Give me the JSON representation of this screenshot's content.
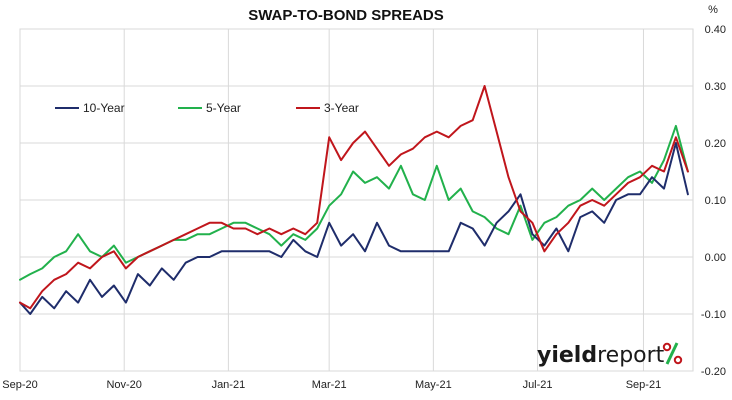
{
  "chart_data": {
    "type": "line",
    "title": "SWAP-TO-BOND SPREADS",
    "y_unit": "%",
    "ylim": [
      -0.2,
      0.4
    ],
    "y_ticks": [
      "0.40",
      "0.30",
      "0.20",
      "0.10",
      "0.00",
      "-0.10",
      "-0.20"
    ],
    "x_range": [
      "2020-09-01",
      "2021-09-30"
    ],
    "x_ticks": [
      {
        "label": "Sep-20",
        "date": "2020-09-01"
      },
      {
        "label": "Nov-20",
        "date": "2020-11-01"
      },
      {
        "label": "Jan-21",
        "date": "2021-01-01"
      },
      {
        "label": "Mar-21",
        "date": "2021-03-01"
      },
      {
        "label": "May-21",
        "date": "2021-05-01"
      },
      {
        "label": "Jul-21",
        "date": "2021-07-01"
      },
      {
        "label": "Sep-21",
        "date": "2021-09-01"
      }
    ],
    "grid": true,
    "legend_position": "top-left",
    "series": [
      {
        "name": "10-Year",
        "color": "#1f2d6b",
        "points": [
          [
            "2020-09-01",
            -0.08
          ],
          [
            "2020-09-07",
            -0.1
          ],
          [
            "2020-09-14",
            -0.07
          ],
          [
            "2020-09-21",
            -0.09
          ],
          [
            "2020-09-28",
            -0.06
          ],
          [
            "2020-10-05",
            -0.08
          ],
          [
            "2020-10-12",
            -0.04
          ],
          [
            "2020-10-19",
            -0.07
          ],
          [
            "2020-10-26",
            -0.05
          ],
          [
            "2020-11-02",
            -0.08
          ],
          [
            "2020-11-09",
            -0.03
          ],
          [
            "2020-11-16",
            -0.05
          ],
          [
            "2020-11-23",
            -0.02
          ],
          [
            "2020-11-30",
            -0.04
          ],
          [
            "2020-12-07",
            -0.01
          ],
          [
            "2020-12-14",
            0.0
          ],
          [
            "2020-12-21",
            0.0
          ],
          [
            "2020-12-28",
            0.01
          ],
          [
            "2021-01-04",
            0.01
          ],
          [
            "2021-01-11",
            0.01
          ],
          [
            "2021-01-18",
            0.01
          ],
          [
            "2021-01-25",
            0.01
          ],
          [
            "2021-02-01",
            0.0
          ],
          [
            "2021-02-08",
            0.03
          ],
          [
            "2021-02-15",
            0.01
          ],
          [
            "2021-02-22",
            0.0
          ],
          [
            "2021-03-01",
            0.06
          ],
          [
            "2021-03-08",
            0.02
          ],
          [
            "2021-03-15",
            0.04
          ],
          [
            "2021-03-22",
            0.01
          ],
          [
            "2021-03-29",
            0.06
          ],
          [
            "2021-04-05",
            0.02
          ],
          [
            "2021-04-12",
            0.01
          ],
          [
            "2021-04-19",
            0.01
          ],
          [
            "2021-04-26",
            0.01
          ],
          [
            "2021-05-03",
            0.01
          ],
          [
            "2021-05-10",
            0.01
          ],
          [
            "2021-05-17",
            0.06
          ],
          [
            "2021-05-24",
            0.05
          ],
          [
            "2021-05-31",
            0.02
          ],
          [
            "2021-06-07",
            0.06
          ],
          [
            "2021-06-14",
            0.08
          ],
          [
            "2021-06-21",
            0.11
          ],
          [
            "2021-06-28",
            0.04
          ],
          [
            "2021-07-05",
            0.02
          ],
          [
            "2021-07-12",
            0.05
          ],
          [
            "2021-07-19",
            0.01
          ],
          [
            "2021-07-26",
            0.07
          ],
          [
            "2021-08-02",
            0.08
          ],
          [
            "2021-08-09",
            0.06
          ],
          [
            "2021-08-16",
            0.1
          ],
          [
            "2021-08-23",
            0.11
          ],
          [
            "2021-08-30",
            0.11
          ],
          [
            "2021-09-06",
            0.14
          ],
          [
            "2021-09-13",
            0.12
          ],
          [
            "2021-09-20",
            0.2
          ],
          [
            "2021-09-27",
            0.11
          ]
        ]
      },
      {
        "name": "5-Year",
        "color": "#22b14c",
        "points": [
          [
            "2020-09-01",
            -0.04
          ],
          [
            "2020-09-07",
            -0.03
          ],
          [
            "2020-09-14",
            -0.02
          ],
          [
            "2020-09-21",
            0.0
          ],
          [
            "2020-09-28",
            0.01
          ],
          [
            "2020-10-05",
            0.04
          ],
          [
            "2020-10-12",
            0.01
          ],
          [
            "2020-10-19",
            0.0
          ],
          [
            "2020-10-26",
            0.02
          ],
          [
            "2020-11-02",
            -0.01
          ],
          [
            "2020-11-09",
            0.0
          ],
          [
            "2020-11-16",
            0.01
          ],
          [
            "2020-11-23",
            0.02
          ],
          [
            "2020-11-30",
            0.03
          ],
          [
            "2020-12-07",
            0.03
          ],
          [
            "2020-12-14",
            0.04
          ],
          [
            "2020-12-21",
            0.04
          ],
          [
            "2020-12-28",
            0.05
          ],
          [
            "2021-01-04",
            0.06
          ],
          [
            "2021-01-11",
            0.06
          ],
          [
            "2021-01-18",
            0.05
          ],
          [
            "2021-01-25",
            0.04
          ],
          [
            "2021-02-01",
            0.02
          ],
          [
            "2021-02-08",
            0.04
          ],
          [
            "2021-02-15",
            0.03
          ],
          [
            "2021-02-22",
            0.05
          ],
          [
            "2021-03-01",
            0.09
          ],
          [
            "2021-03-08",
            0.11
          ],
          [
            "2021-03-15",
            0.15
          ],
          [
            "2021-03-22",
            0.13
          ],
          [
            "2021-03-29",
            0.14
          ],
          [
            "2021-04-05",
            0.12
          ],
          [
            "2021-04-12",
            0.16
          ],
          [
            "2021-04-19",
            0.11
          ],
          [
            "2021-04-26",
            0.1
          ],
          [
            "2021-05-03",
            0.16
          ],
          [
            "2021-05-10",
            0.1
          ],
          [
            "2021-05-17",
            0.12
          ],
          [
            "2021-05-24",
            0.08
          ],
          [
            "2021-05-31",
            0.07
          ],
          [
            "2021-06-07",
            0.05
          ],
          [
            "2021-06-14",
            0.04
          ],
          [
            "2021-06-21",
            0.09
          ],
          [
            "2021-06-28",
            0.03
          ],
          [
            "2021-07-05",
            0.06
          ],
          [
            "2021-07-12",
            0.07
          ],
          [
            "2021-07-19",
            0.09
          ],
          [
            "2021-07-26",
            0.1
          ],
          [
            "2021-08-02",
            0.12
          ],
          [
            "2021-08-09",
            0.1
          ],
          [
            "2021-08-16",
            0.12
          ],
          [
            "2021-08-23",
            0.14
          ],
          [
            "2021-08-30",
            0.15
          ],
          [
            "2021-09-06",
            0.13
          ],
          [
            "2021-09-13",
            0.17
          ],
          [
            "2021-09-20",
            0.23
          ],
          [
            "2021-09-27",
            0.15
          ]
        ]
      },
      {
        "name": "3-Year",
        "color": "#c0161c",
        "points": [
          [
            "2020-09-01",
            -0.08
          ],
          [
            "2020-09-07",
            -0.09
          ],
          [
            "2020-09-14",
            -0.06
          ],
          [
            "2020-09-21",
            -0.04
          ],
          [
            "2020-09-28",
            -0.03
          ],
          [
            "2020-10-05",
            -0.01
          ],
          [
            "2020-10-12",
            -0.02
          ],
          [
            "2020-10-19",
            0.0
          ],
          [
            "2020-10-26",
            0.01
          ],
          [
            "2020-11-02",
            -0.02
          ],
          [
            "2020-11-09",
            0.0
          ],
          [
            "2020-11-16",
            0.01
          ],
          [
            "2020-11-23",
            0.02
          ],
          [
            "2020-11-30",
            0.03
          ],
          [
            "2020-12-07",
            0.04
          ],
          [
            "2020-12-14",
            0.05
          ],
          [
            "2020-12-21",
            0.06
          ],
          [
            "2020-12-28",
            0.06
          ],
          [
            "2021-01-04",
            0.05
          ],
          [
            "2021-01-11",
            0.05
          ],
          [
            "2021-01-18",
            0.04
          ],
          [
            "2021-01-25",
            0.05
          ],
          [
            "2021-02-01",
            0.04
          ],
          [
            "2021-02-08",
            0.05
          ],
          [
            "2021-02-15",
            0.04
          ],
          [
            "2021-02-22",
            0.06
          ],
          [
            "2021-03-01",
            0.21
          ],
          [
            "2021-03-08",
            0.17
          ],
          [
            "2021-03-15",
            0.2
          ],
          [
            "2021-03-22",
            0.22
          ],
          [
            "2021-03-29",
            0.19
          ],
          [
            "2021-04-05",
            0.16
          ],
          [
            "2021-04-12",
            0.18
          ],
          [
            "2021-04-19",
            0.19
          ],
          [
            "2021-04-26",
            0.21
          ],
          [
            "2021-05-03",
            0.22
          ],
          [
            "2021-05-10",
            0.21
          ],
          [
            "2021-05-17",
            0.23
          ],
          [
            "2021-05-24",
            0.24
          ],
          [
            "2021-05-31",
            0.3
          ],
          [
            "2021-06-07",
            0.22
          ],
          [
            "2021-06-14",
            0.14
          ],
          [
            "2021-06-21",
            0.08
          ],
          [
            "2021-06-28",
            0.06
          ],
          [
            "2021-07-05",
            0.01
          ],
          [
            "2021-07-12",
            0.04
          ],
          [
            "2021-07-19",
            0.06
          ],
          [
            "2021-07-26",
            0.09
          ],
          [
            "2021-08-02",
            0.1
          ],
          [
            "2021-08-09",
            0.09
          ],
          [
            "2021-08-16",
            0.11
          ],
          [
            "2021-08-23",
            0.13
          ],
          [
            "2021-08-30",
            0.14
          ],
          [
            "2021-09-06",
            0.16
          ],
          [
            "2021-09-13",
            0.15
          ],
          [
            "2021-09-20",
            0.21
          ],
          [
            "2021-09-27",
            0.15
          ]
        ]
      }
    ]
  },
  "logo": {
    "text_bold": "yield",
    "text_light": "report",
    "symbol": "%",
    "symbol_colors": [
      "#22b14c",
      "#c0161c"
    ]
  }
}
